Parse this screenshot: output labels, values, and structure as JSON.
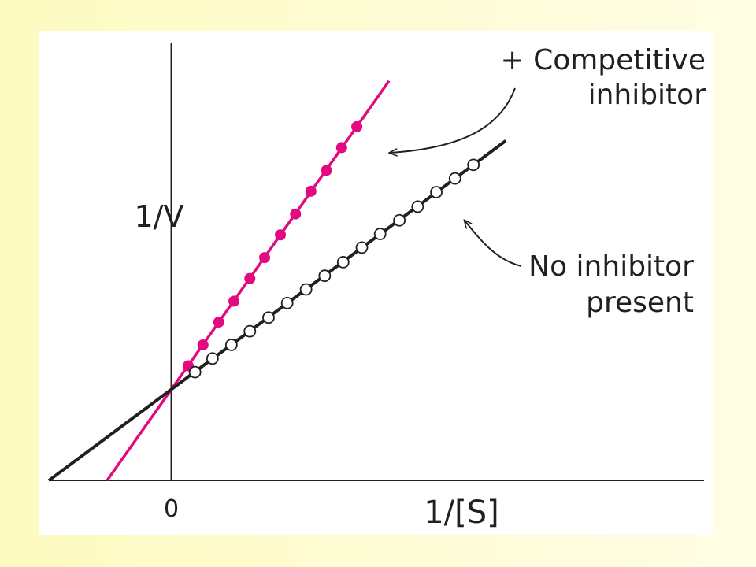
{
  "chart_data": {
    "type": "line",
    "title": "",
    "xlabel": "1/[S]",
    "ylabel": "1/V",
    "origin_tick": "0",
    "xlim": [
      -0.63,
      2.74
    ],
    "ylim": [
      0,
      4.85
    ],
    "grid": false,
    "legend": "none",
    "series": [
      {
        "name": "+ Competitive inhibitor",
        "color": "#e3097f",
        "marker": "filled-circle",
        "line_x": [
          -0.33,
          1.12
        ],
        "line_y_intercept": 1.0,
        "line_slope": 3.03,
        "x": [
          0.087,
          0.163,
          0.244,
          0.322,
          0.404,
          0.48,
          0.561,
          0.639,
          0.718,
          0.798,
          0.876,
          0.954
        ],
        "y": [
          1.26,
          1.49,
          1.74,
          1.97,
          2.22,
          2.45,
          2.7,
          2.93,
          3.18,
          3.41,
          3.66,
          3.89
        ]
      },
      {
        "name": "No inhibitor present",
        "color": "#231f20",
        "marker": "open-circle",
        "line_x": [
          -0.63,
          1.72
        ],
        "line_y_intercept": 1.0,
        "line_slope": 1.59,
        "x": [
          0.122,
          0.212,
          0.309,
          0.404,
          0.5,
          0.596,
          0.693,
          0.789,
          0.884,
          0.98,
          1.074,
          1.173,
          1.267,
          1.363,
          1.459,
          1.554
        ],
        "y": [
          1.19,
          1.34,
          1.49,
          1.64,
          1.79,
          1.95,
          2.1,
          2.25,
          2.4,
          2.56,
          2.71,
          2.86,
          3.01,
          3.17,
          3.32,
          3.47
        ]
      }
    ],
    "annotations": [
      {
        "text_lines": [
          "+ Competitive",
          "inhibitor"
        ],
        "points_to": "+ Competitive inhibitor"
      },
      {
        "text_lines": [
          "No inhibitor",
          "present"
        ],
        "points_to": "No inhibitor present"
      }
    ]
  }
}
